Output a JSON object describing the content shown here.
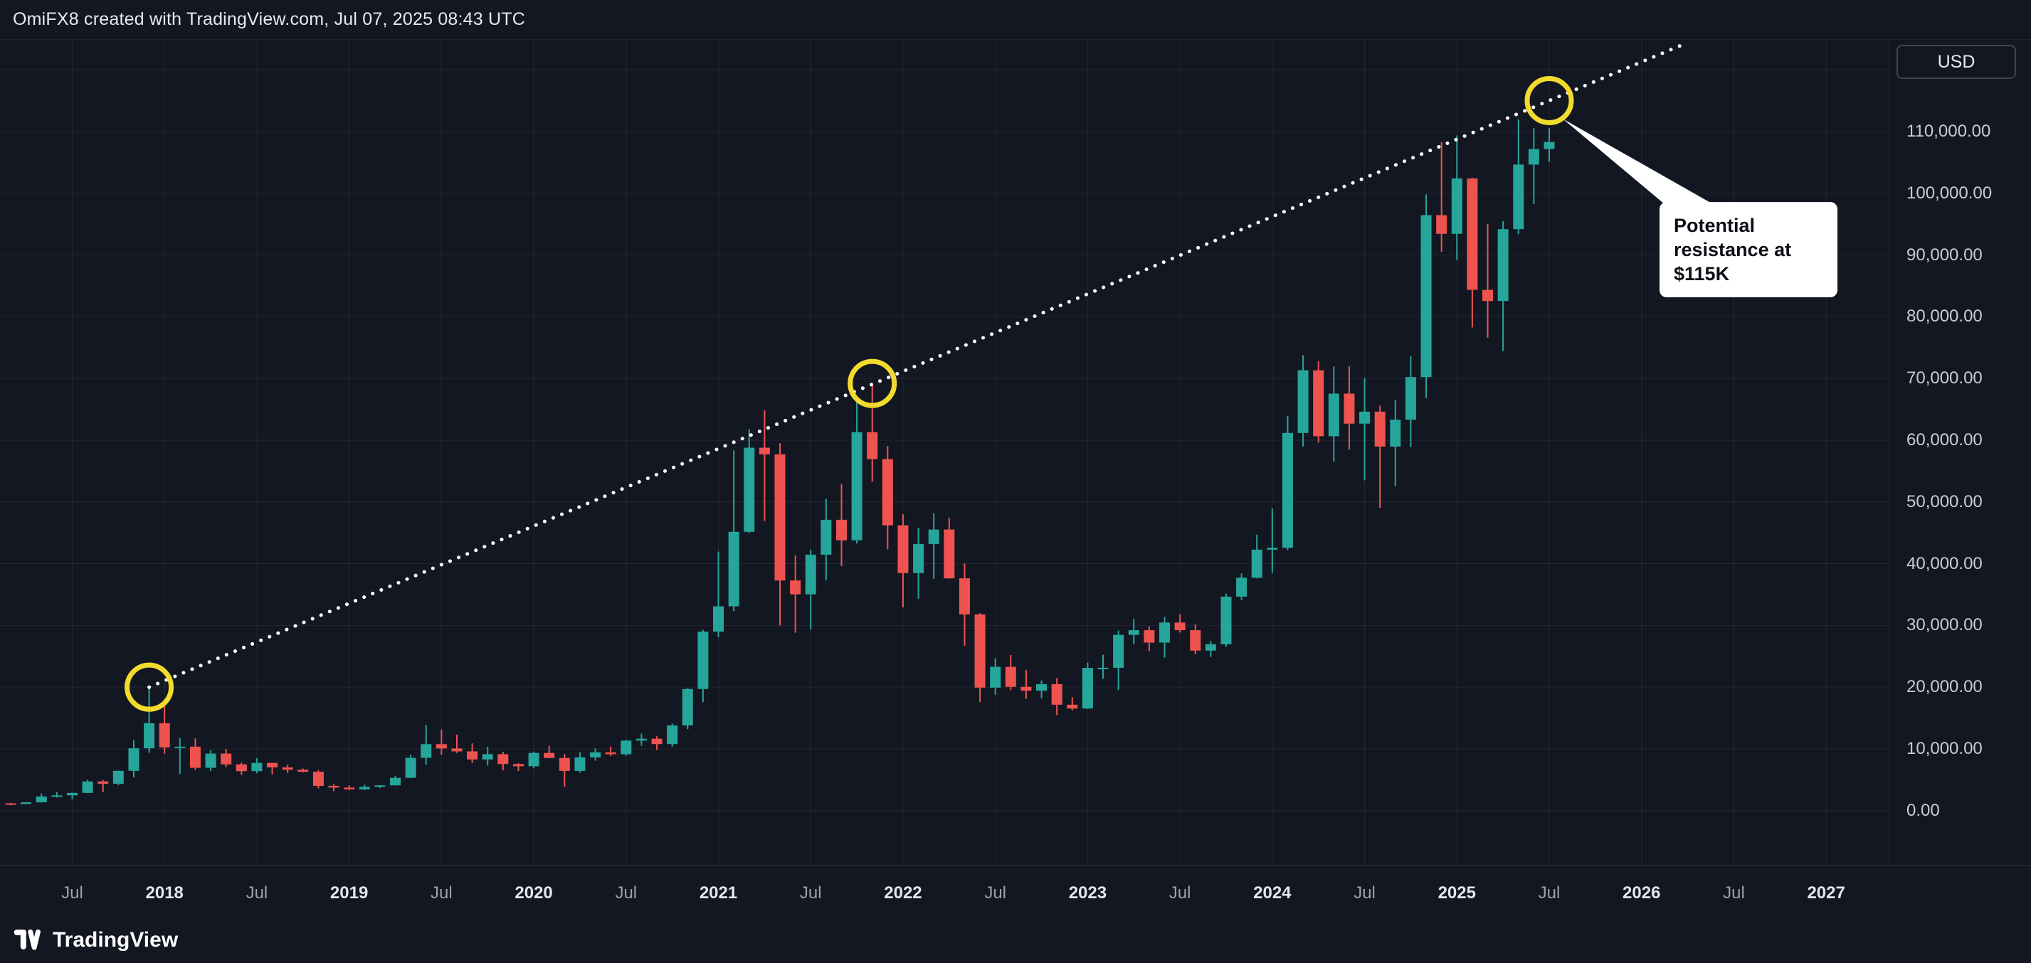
{
  "header": {
    "attribution": "OmiFX8 created with TradingView.com, Jul 07, 2025 08:43 UTC"
  },
  "colors": {
    "background": "#131722",
    "grid": "rgba(255,255,255,0.07)",
    "separator": "#2a2e39",
    "axis_text": "#c9ccd6",
    "axis_text_strong": "#e4e6ea",
    "up": "#26a69a",
    "down": "#ef5350",
    "trendline": "#ffffff",
    "highlight_yellow": "#f2db2d",
    "callout_bg": "#ffffff",
    "callout_text": "#0c0e15"
  },
  "price_axis": {
    "currency_label": "USD",
    "labels": [
      {
        "value": 110000,
        "text": "110,000.00"
      },
      {
        "value": 100000,
        "text": "100,000.00"
      },
      {
        "value": 90000,
        "text": "90,000.00"
      },
      {
        "value": 80000,
        "text": "80,000.00"
      },
      {
        "value": 70000,
        "text": "70,000.00"
      },
      {
        "value": 60000,
        "text": "60,000.00"
      },
      {
        "value": 50000,
        "text": "50,000.00"
      },
      {
        "value": 40000,
        "text": "40,000.00"
      },
      {
        "value": 30000,
        "text": "30,000.00"
      },
      {
        "value": 20000,
        "text": "20,000.00"
      },
      {
        "value": 10000,
        "text": "10,000.00"
      },
      {
        "value": 0,
        "text": "0.00"
      }
    ]
  },
  "time_axis": {
    "labels": [
      {
        "text": "Jul",
        "m": 6,
        "major": false
      },
      {
        "text": "2018",
        "m": 12,
        "major": true
      },
      {
        "text": "Jul",
        "m": 18,
        "major": false
      },
      {
        "text": "2019",
        "m": 24,
        "major": true
      },
      {
        "text": "Jul",
        "m": 30,
        "major": false
      },
      {
        "text": "2020",
        "m": 36,
        "major": true
      },
      {
        "text": "Jul",
        "m": 42,
        "major": false
      },
      {
        "text": "2021",
        "m": 48,
        "major": true
      },
      {
        "text": "Jul",
        "m": 54,
        "major": false
      },
      {
        "text": "2022",
        "m": 60,
        "major": true
      },
      {
        "text": "Jul",
        "m": 66,
        "major": false
      },
      {
        "text": "2023",
        "m": 72,
        "major": true
      },
      {
        "text": "Jul",
        "m": 78,
        "major": false
      },
      {
        "text": "2024",
        "m": 84,
        "major": true
      },
      {
        "text": "Jul",
        "m": 90,
        "major": false
      },
      {
        "text": "2025",
        "m": 96,
        "major": true
      },
      {
        "text": "Jul",
        "m": 102,
        "major": false
      },
      {
        "text": "2026",
        "m": 108,
        "major": true
      },
      {
        "text": "Jul",
        "m": 114,
        "major": false
      },
      {
        "text": "2027",
        "m": 120,
        "major": true
      }
    ]
  },
  "annotations": {
    "trendline": {
      "style": "dotted",
      "color": "#ffffff",
      "from": {
        "month": "2017-12",
        "price": 20000
      },
      "to": {
        "month": "2026-04",
        "price": 124400
      }
    },
    "circles": [
      {
        "month": "2017-12",
        "price": 20000
      },
      {
        "month": "2021-11",
        "price": 69200
      },
      {
        "month": "2025-07",
        "price": 115000
      }
    ],
    "callout": {
      "lines": [
        "Potential",
        "resistance at",
        "$115K"
      ]
    }
  },
  "footer": {
    "brand": "TradingView"
  },
  "chart_data": {
    "type": "candlestick",
    "title": "BTC price, monthly candles, USD",
    "timeframe": "1M",
    "currency": "USD",
    "up_color": "#26a69a",
    "down_color": "#ef5350",
    "y_axis": {
      "min_visible": 0,
      "max_visible": 110000,
      "tick_step": 10000
    },
    "x_axis": {
      "start": "2017-03",
      "end_labeled": "2027-01"
    },
    "candles_format": [
      "month",
      "open",
      "high",
      "low",
      "close"
    ],
    "candles": [
      [
        "2017-03",
        1180,
        1280,
        890,
        1080
      ],
      [
        "2017-04",
        1080,
        1350,
        1060,
        1350
      ],
      [
        "2017-05",
        1350,
        2780,
        1340,
        2300
      ],
      [
        "2017-06",
        2300,
        2980,
        2120,
        2480
      ],
      [
        "2017-07",
        2480,
        2920,
        1830,
        2875
      ],
      [
        "2017-08",
        2875,
        4980,
        2840,
        4735
      ],
      [
        "2017-09",
        4735,
        4975,
        2970,
        4360
      ],
      [
        "2017-10",
        4360,
        6470,
        4110,
        6450
      ],
      [
        "2017-11",
        6450,
        11400,
        5380,
        10100
      ],
      [
        "2017-12",
        10100,
        19870,
        9380,
        14160
      ],
      [
        "2018-01",
        14160,
        17230,
        9220,
        10250
      ],
      [
        "2018-02",
        10250,
        11790,
        5920,
        10360
      ],
      [
        "2018-03",
        10360,
        11700,
        6600,
        6940
      ],
      [
        "2018-04",
        6940,
        9760,
        6430,
        9240
      ],
      [
        "2018-05",
        9240,
        9990,
        7070,
        7500
      ],
      [
        "2018-06",
        7500,
        7780,
        5780,
        6400
      ],
      [
        "2018-07",
        6400,
        8500,
        6070,
        7730
      ],
      [
        "2018-08",
        7730,
        7760,
        5880,
        7010
      ],
      [
        "2018-09",
        7010,
        7410,
        6120,
        6630
      ],
      [
        "2018-10",
        6630,
        6820,
        6190,
        6300
      ],
      [
        "2018-11",
        6300,
        6540,
        3620,
        4020
      ],
      [
        "2018-12",
        4020,
        4300,
        3150,
        3740
      ],
      [
        "2019-01",
        3740,
        4090,
        3350,
        3460
      ],
      [
        "2019-02",
        3460,
        4190,
        3350,
        3860
      ],
      [
        "2019-03",
        3860,
        4130,
        3660,
        4100
      ],
      [
        "2019-04",
        4100,
        5620,
        4060,
        5320
      ],
      [
        "2019-05",
        5320,
        9070,
        5270,
        8560
      ],
      [
        "2019-06",
        8560,
        13880,
        7430,
        10770
      ],
      [
        "2019-07",
        10770,
        13130,
        9070,
        10080
      ],
      [
        "2019-08",
        10080,
        12320,
        9350,
        9600
      ],
      [
        "2019-09",
        9600,
        10900,
        7700,
        8290
      ],
      [
        "2019-10",
        8290,
        10350,
        7290,
        9150
      ],
      [
        "2019-11",
        9150,
        9520,
        6520,
        7550
      ],
      [
        "2019-12",
        7550,
        7690,
        6430,
        7190
      ],
      [
        "2020-01",
        7190,
        9570,
        6850,
        9350
      ],
      [
        "2020-02",
        9350,
        10500,
        8520,
        8530
      ],
      [
        "2020-03",
        8530,
        9170,
        3850,
        6440
      ],
      [
        "2020-04",
        6440,
        9460,
        6150,
        8630
      ],
      [
        "2020-05",
        8630,
        10070,
        8100,
        9450
      ],
      [
        "2020-06",
        9450,
        10380,
        8830,
        9140
      ],
      [
        "2020-07",
        9140,
        11450,
        8900,
        11350
      ],
      [
        "2020-08",
        11350,
        12480,
        10510,
        11650
      ],
      [
        "2020-09",
        11650,
        12050,
        9820,
        10780
      ],
      [
        "2020-10",
        10780,
        14100,
        10380,
        13800
      ],
      [
        "2020-11",
        13800,
        19860,
        13200,
        19700
      ],
      [
        "2020-12",
        19700,
        29300,
        17570,
        29000
      ],
      [
        "2021-01",
        29000,
        41950,
        28130,
        33100
      ],
      [
        "2021-02",
        33100,
        58350,
        32320,
        45160
      ],
      [
        "2021-03",
        45160,
        61780,
        44950,
        58780
      ],
      [
        "2021-04",
        58780,
        64850,
        46930,
        57720
      ],
      [
        "2021-05",
        57720,
        59500,
        30000,
        37280
      ],
      [
        "2021-06",
        37280,
        41330,
        28800,
        35040
      ],
      [
        "2021-07",
        35040,
        42240,
        29300,
        41460
      ],
      [
        "2021-08",
        41460,
        50500,
        37330,
        47110
      ],
      [
        "2021-09",
        47110,
        52920,
        39600,
        43790
      ],
      [
        "2021-10",
        43790,
        66990,
        43280,
        61310
      ],
      [
        "2021-11",
        61310,
        69000,
        53260,
        56950
      ],
      [
        "2021-12",
        56950,
        59040,
        42330,
        46210
      ],
      [
        "2022-01",
        46210,
        47990,
        32930,
        38480
      ],
      [
        "2022-02",
        38480,
        45820,
        34320,
        43190
      ],
      [
        "2022-03",
        43190,
        48190,
        37550,
        45530
      ],
      [
        "2022-04",
        45530,
        47440,
        37580,
        37630
      ],
      [
        "2022-05",
        37630,
        40020,
        26700,
        31790
      ],
      [
        "2022-06",
        31790,
        31980,
        17590,
        19925
      ],
      [
        "2022-07",
        19925,
        24670,
        18780,
        23290
      ],
      [
        "2022-08",
        23290,
        25210,
        19520,
        20050
      ],
      [
        "2022-09",
        20050,
        22800,
        18120,
        19430
      ],
      [
        "2022-10",
        19430,
        21080,
        18190,
        20490
      ],
      [
        "2022-11",
        20490,
        21470,
        15480,
        17160
      ],
      [
        "2022-12",
        17160,
        18390,
        16250,
        16540
      ],
      [
        "2023-01",
        16540,
        23960,
        16490,
        23130
      ],
      [
        "2023-02",
        23130,
        25250,
        21360,
        23140
      ],
      [
        "2023-03",
        23140,
        29180,
        19550,
        28470
      ],
      [
        "2023-04",
        28470,
        31050,
        26940,
        29230
      ],
      [
        "2023-05",
        29230,
        29840,
        25810,
        27220
      ],
      [
        "2023-06",
        27220,
        31390,
        24800,
        30470
      ],
      [
        "2023-07",
        30470,
        31800,
        28860,
        29230
      ],
      [
        "2023-08",
        29230,
        30180,
        25350,
        25930
      ],
      [
        "2023-09",
        25930,
        27480,
        24900,
        26960
      ],
      [
        "2023-10",
        26960,
        35150,
        26540,
        34660
      ],
      [
        "2023-11",
        34660,
        38410,
        34100,
        37720
      ],
      [
        "2023-12",
        37720,
        44700,
        37610,
        42270
      ],
      [
        "2024-01",
        42270,
        48970,
        38500,
        42580
      ],
      [
        "2024-02",
        42580,
        63910,
        42190,
        61170
      ],
      [
        "2024-03",
        61170,
        73780,
        59000,
        71330
      ],
      [
        "2024-04",
        71330,
        72790,
        59600,
        60640
      ],
      [
        "2024-05",
        60640,
        71950,
        56550,
        67540
      ],
      [
        "2024-06",
        67540,
        71990,
        58450,
        62680
      ],
      [
        "2024-07",
        62680,
        70070,
        53500,
        64620
      ],
      [
        "2024-08",
        64620,
        65600,
        49050,
        58970
      ],
      [
        "2024-09",
        58970,
        66500,
        52550,
        63330
      ],
      [
        "2024-10",
        63330,
        73600,
        58900,
        70220
      ],
      [
        "2024-11",
        70220,
        99800,
        66830,
        96450
      ],
      [
        "2024-12",
        96450,
        108270,
        90500,
        93430
      ],
      [
        "2025-01",
        93430,
        109350,
        89160,
        102400
      ],
      [
        "2025-02",
        102400,
        102500,
        78260,
        84350
      ],
      [
        "2025-03",
        84350,
        95050,
        76600,
        82550
      ],
      [
        "2025-04",
        82550,
        95470,
        74430,
        94180
      ],
      [
        "2025-05",
        94180,
        111970,
        93350,
        104640
      ],
      [
        "2025-06",
        104640,
        110530,
        98240,
        107170
      ],
      [
        "2025-07",
        107170,
        110590,
        105100,
        108300
      ]
    ]
  }
}
